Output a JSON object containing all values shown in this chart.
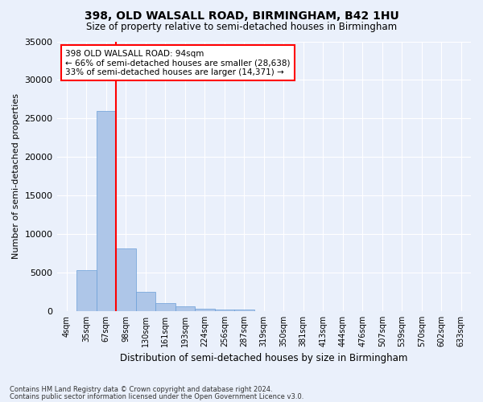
{
  "title": "398, OLD WALSALL ROAD, BIRMINGHAM, B42 1HU",
  "subtitle": "Size of property relative to semi-detached houses in Birmingham",
  "xlabel": "Distribution of semi-detached houses by size in Birmingham",
  "ylabel": "Number of semi-detached properties",
  "bar_labels": [
    "4sqm",
    "35sqm",
    "67sqm",
    "98sqm",
    "130sqm",
    "161sqm",
    "193sqm",
    "224sqm",
    "256sqm",
    "287sqm",
    "319sqm",
    "350sqm",
    "381sqm",
    "413sqm",
    "444sqm",
    "476sqm",
    "507sqm",
    "539sqm",
    "570sqm",
    "602sqm",
    "633sqm"
  ],
  "bar_values": [
    0,
    5300,
    26000,
    8100,
    2500,
    1000,
    600,
    350,
    200,
    150,
    0,
    0,
    0,
    0,
    0,
    0,
    0,
    0,
    0,
    0,
    0
  ],
  "bar_color": "#aec6e8",
  "bar_edgecolor": "#6a9fd8",
  "vline_color": "red",
  "vline_bin_index": 3,
  "annotation_text": "398 OLD WALSALL ROAD: 94sqm\n← 66% of semi-detached houses are smaller (28,638)\n33% of semi-detached houses are larger (14,371) →",
  "annotation_box_edgecolor": "red",
  "annotation_box_facecolor": "white",
  "ylim": [
    0,
    35000
  ],
  "yticks": [
    0,
    5000,
    10000,
    15000,
    20000,
    25000,
    30000,
    35000
  ],
  "bg_color": "#eaf0fb",
  "grid_color": "white",
  "footnote1": "Contains HM Land Registry data © Crown copyright and database right 2024.",
  "footnote2": "Contains public sector information licensed under the Open Government Licence v3.0."
}
